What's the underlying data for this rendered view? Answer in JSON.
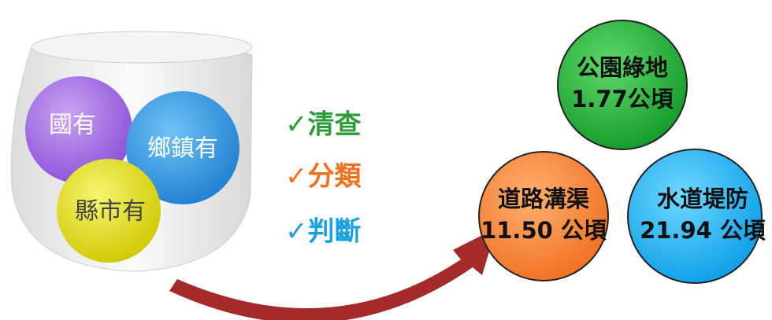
{
  "ownership": {
    "items": [
      "國有",
      "鄉鎮有",
      "縣市有"
    ]
  },
  "steps": [
    "✓清查",
    "✓分類",
    "✓判斷"
  ],
  "results": [
    {
      "label": "公園綠地",
      "area": "1.77公頃"
    },
    {
      "label": "道路溝渠",
      "area": "11.50 公頃"
    },
    {
      "label": "水道堤防",
      "area": "21.94 公頃"
    }
  ]
}
